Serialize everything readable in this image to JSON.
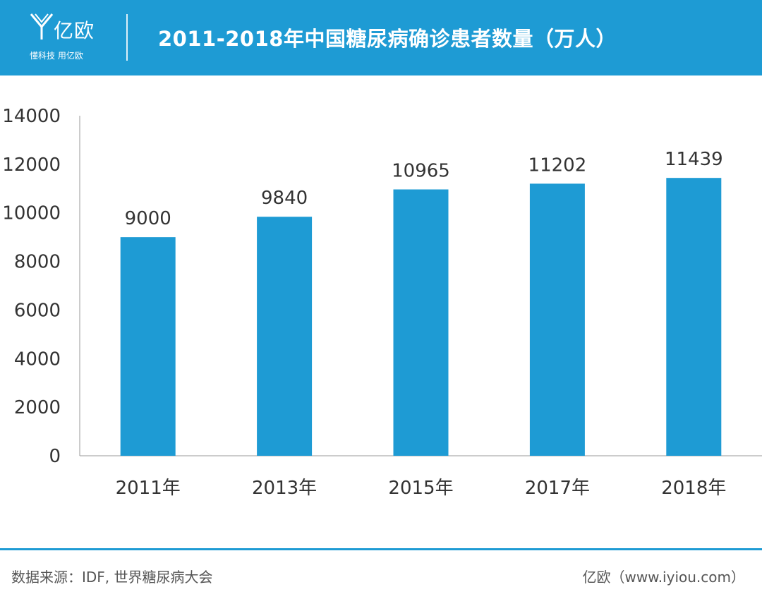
{
  "header": {
    "logo_name": "亿欧",
    "logo_slogan": "懂科技 用亿欧",
    "title": "2011-2018年中国糖尿病确诊患者数量（万人）",
    "background_color": "#1e9bd4"
  },
  "chart_data": {
    "type": "bar",
    "categories": [
      "2011年",
      "2013年",
      "2015年",
      "2017年",
      "2018年"
    ],
    "values": [
      9000,
      9840,
      10965,
      11202,
      11439
    ],
    "data_labels": [
      "9000",
      "9840",
      "10965",
      "11202",
      "11439"
    ],
    "y_ticks": [
      0,
      2000,
      4000,
      6000,
      8000,
      10000,
      12000,
      14000
    ],
    "ylim": [
      0,
      14000
    ],
    "bar_color": "#1e9bd4",
    "grid": false,
    "legend": "none"
  },
  "footer": {
    "source": "数据来源：IDF, 世界糖尿病大会",
    "brand": "亿欧（www.iyiou.com）",
    "line_color": "#1e9bd4"
  }
}
